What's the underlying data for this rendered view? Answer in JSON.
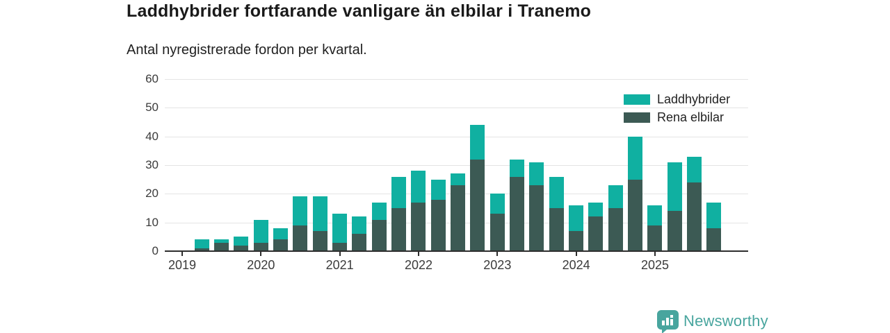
{
  "header": {
    "title": "Laddhybrider fortfarande vanligare än elbilar i Tranemo",
    "subtitle": "Antal nyregistrerade fordon per kvartal."
  },
  "chart_data": {
    "type": "bar",
    "stacked": true,
    "categories": [
      "2019 Q1",
      "2019 Q2",
      "2019 Q3",
      "2019 Q4",
      "2020 Q1",
      "2020 Q2",
      "2020 Q3",
      "2020 Q4",
      "2021 Q1",
      "2021 Q2",
      "2021 Q3",
      "2021 Q4",
      "2022 Q1",
      "2022 Q2",
      "2022 Q3",
      "2022 Q4",
      "2023 Q1",
      "2023 Q2",
      "2023 Q3",
      "2023 Q4",
      "2024 Q1",
      "2024 Q2",
      "2024 Q3",
      "2024 Q4",
      "2025 Q1",
      "2025 Q2",
      "2025 Q3",
      "2025 Q4"
    ],
    "series": [
      {
        "name": "Laddhybrider",
        "color": "#10b0a1",
        "values": [
          0,
          3,
          1,
          3,
          8,
          4,
          10,
          12,
          10,
          6,
          6,
          11,
          11,
          7,
          4,
          12,
          7,
          6,
          8,
          11,
          9,
          5,
          8,
          15,
          7,
          17,
          9,
          9
        ]
      },
      {
        "name": "Rena elbilar",
        "color": "#3c5a54",
        "values": [
          0,
          1,
          3,
          2,
          3,
          4,
          9,
          7,
          3,
          6,
          11,
          15,
          17,
          18,
          23,
          32,
          13,
          26,
          23,
          15,
          7,
          12,
          15,
          25,
          9,
          14,
          24,
          8
        ]
      }
    ],
    "totals": [
      0,
      4,
      4,
      5,
      11,
      8,
      19,
      19,
      13,
      12,
      17,
      26,
      28,
      25,
      27,
      44,
      20,
      32,
      31,
      26,
      16,
      17,
      23,
      40,
      16,
      31,
      33,
      17
    ],
    "xlabel": "",
    "ylabel": "",
    "ylim": [
      0,
      60
    ],
    "yticks": [
      0,
      10,
      20,
      30,
      40,
      50,
      60
    ],
    "year_labels": [
      "2019",
      "2020",
      "2021",
      "2022",
      "2023",
      "2024",
      "2025"
    ],
    "grid": "horizontal",
    "legend_position": "top-right"
  },
  "legend": {
    "items": [
      {
        "label": "Laddhybrider",
        "color": "#10b0a1"
      },
      {
        "label": "Rena elbilar",
        "color": "#3c5a54"
      }
    ]
  },
  "branding": {
    "logo_text": "Newsworthy",
    "color": "#48a59e"
  }
}
